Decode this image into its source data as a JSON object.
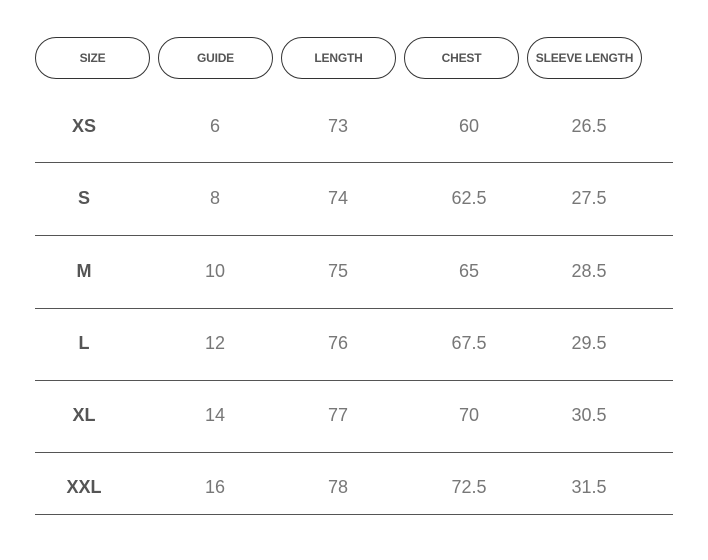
{
  "table": {
    "header": [
      "SIZE",
      "GUIDE",
      "LENGTH",
      "CHEST",
      "SLEEVE LENGTH"
    ],
    "rows": [
      [
        "XS",
        6,
        73,
        60,
        26.5
      ],
      [
        "S",
        8,
        74,
        62.5,
        27.5
      ],
      [
        "M",
        10,
        75,
        65,
        28.5
      ],
      [
        "L",
        12,
        76,
        67.5,
        29.5
      ],
      [
        "XL",
        14,
        77,
        70,
        30.5
      ],
      [
        "XXL",
        16,
        78,
        72.5,
        31.5
      ]
    ]
  }
}
